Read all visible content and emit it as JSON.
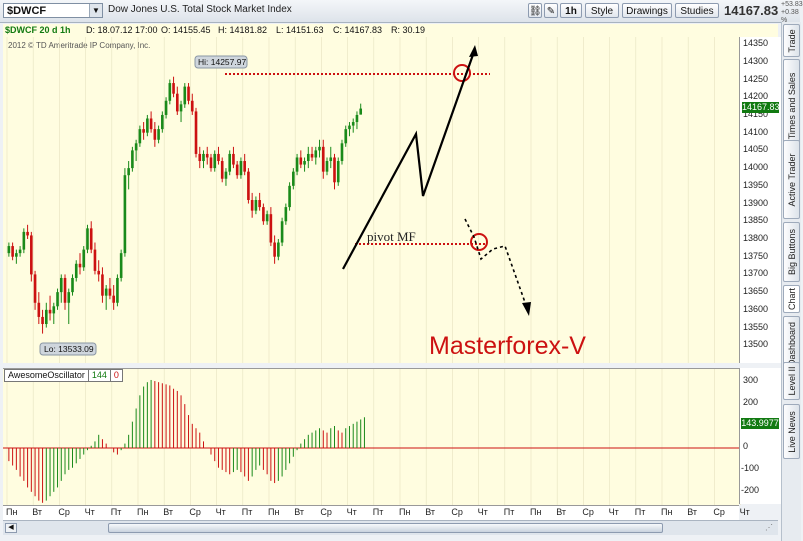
{
  "toolbar": {
    "symbol": "$DWCF",
    "symbol_description": "Dow Jones U.S. Total Stock Market Index",
    "interval": "1h",
    "style_label": "Style",
    "drawings_label": "Drawings",
    "studies_label": "Studies",
    "last_price": "14167.83",
    "change_line1": "+53.83",
    "change_line2": "+0.38 %"
  },
  "infobar": {
    "chart_label": "$DWCF 20 d 1h",
    "date": "D: 18.07.12 17:00",
    "open": "O: 14155.45",
    "high": "H: 14181.82",
    "low": "L: 14151.63",
    "close": "C: 14167.83",
    "range": "R: 30.19"
  },
  "copyright": "2012 © TD Ameritrade IP Company, Inc.",
  "price_tag": "14167.83",
  "osc": {
    "name": "AwesomeOscillator",
    "param1": "144",
    "param2": "0",
    "value_tag": "143.9977"
  },
  "side_tabs": [
    "Trade",
    "Times and Sales",
    "Active Trader",
    "Big Buttons",
    "Chart",
    "Dashboard",
    "Level II",
    "Live News"
  ],
  "annotations": {
    "hi_label": "Hi: 14257.97",
    "lo_label": "Lo: 13533.09",
    "pivot_label": "pivot MF",
    "watermark": "Masterforex-V"
  },
  "colors": {
    "up": "#1a8a1a",
    "down": "#cc1111",
    "pane_bg": "#fffde0",
    "annotation": "#cc1111"
  },
  "chart_data": [
    {
      "type": "candlestick",
      "title": "$DWCF 20 d 1h",
      "ylim": [
        13450,
        14370
      ],
      "y_ticks": [
        13500,
        13550,
        13600,
        13650,
        13700,
        13750,
        13800,
        13850,
        13900,
        13950,
        14000,
        14050,
        14100,
        14150,
        14200,
        14250,
        14300,
        14350
      ],
      "x_ticks": [
        "Пн",
        "Вт",
        "Ср",
        "Чт",
        "Пт",
        "Пн",
        "Вт",
        "Ср",
        "Чт",
        "Пт",
        "Пн",
        "Вт",
        "Ср",
        "Чт",
        "Пт",
        "Пн",
        "Вт",
        "Ср",
        "Чт",
        "Пт",
        "Пн",
        "Вт",
        "Ср",
        "Чт",
        "Пт",
        "Пн",
        "Вт",
        "Ср",
        "Чт"
      ],
      "bars_per_day": 7,
      "data_days": 20,
      "ohlc": [
        [
          13760,
          13790,
          13750,
          13780
        ],
        [
          13780,
          13790,
          13740,
          13750
        ],
        [
          13750,
          13770,
          13730,
          13760
        ],
        [
          13760,
          13780,
          13750,
          13770
        ],
        [
          13770,
          13830,
          13760,
          13820
        ],
        [
          13820,
          13840,
          13800,
          13810
        ],
        [
          13810,
          13820,
          13680,
          13700
        ],
        [
          13700,
          13710,
          13600,
          13620
        ],
        [
          13620,
          13650,
          13560,
          13580
        ],
        [
          13580,
          13600,
          13533,
          13560
        ],
        [
          13560,
          13620,
          13550,
          13600
        ],
        [
          13600,
          13640,
          13570,
          13590
        ],
        [
          13590,
          13620,
          13560,
          13610
        ],
        [
          13610,
          13660,
          13600,
          13650
        ],
        [
          13650,
          13700,
          13620,
          13690
        ],
        [
          13690,
          13700,
          13600,
          13620
        ],
        [
          13620,
          13660,
          13560,
          13650
        ],
        [
          13650,
          13700,
          13640,
          13690
        ],
        [
          13690,
          13740,
          13680,
          13730
        ],
        [
          13730,
          13760,
          13700,
          13720
        ],
        [
          13720,
          13780,
          13710,
          13770
        ],
        [
          13770,
          13840,
          13760,
          13830
        ],
        [
          13830,
          13850,
          13760,
          13770
        ],
        [
          13770,
          13790,
          13700,
          13710
        ],
        [
          13710,
          13740,
          13680,
          13700
        ],
        [
          13700,
          13720,
          13620,
          13640
        ],
        [
          13640,
          13670,
          13600,
          13660
        ],
        [
          13660,
          13690,
          13630,
          13640
        ],
        [
          13640,
          13670,
          13600,
          13620
        ],
        [
          13620,
          13700,
          13610,
          13690
        ],
        [
          13690,
          13770,
          13680,
          13760
        ],
        [
          13760,
          14000,
          13750,
          13980
        ],
        [
          13980,
          14020,
          13940,
          14000
        ],
        [
          14000,
          14060,
          13990,
          14050
        ],
        [
          14050,
          14080,
          14020,
          14070
        ],
        [
          14070,
          14120,
          14060,
          14110
        ],
        [
          14110,
          14130,
          14080,
          14100
        ],
        [
          14100,
          14150,
          14090,
          14140
        ],
        [
          14140,
          14160,
          14100,
          14110
        ],
        [
          14110,
          14130,
          14060,
          14080
        ],
        [
          14080,
          14120,
          14070,
          14110
        ],
        [
          14110,
          14160,
          14100,
          14150
        ],
        [
          14150,
          14200,
          14140,
          14190
        ],
        [
          14190,
          14250,
          14180,
          14240
        ],
        [
          14240,
          14258,
          14200,
          14210
        ],
        [
          14210,
          14230,
          14150,
          14160
        ],
        [
          14160,
          14190,
          14130,
          14180
        ],
        [
          14180,
          14240,
          14170,
          14230
        ],
        [
          14230,
          14240,
          14180,
          14190
        ],
        [
          14190,
          14210,
          14150,
          14160
        ],
        [
          14160,
          14170,
          14030,
          14040
        ],
        [
          14040,
          14060,
          14000,
          14020
        ],
        [
          14020,
          14050,
          14000,
          14040
        ],
        [
          14040,
          14060,
          14010,
          14030
        ],
        [
          14030,
          14040,
          13990,
          14000
        ],
        [
          14000,
          14050,
          13990,
          14040
        ],
        [
          14040,
          14060,
          14010,
          14020
        ],
        [
          14020,
          14030,
          13960,
          13970
        ],
        [
          13970,
          14000,
          13950,
          13990
        ],
        [
          13990,
          14050,
          13980,
          14040
        ],
        [
          14040,
          14060,
          14000,
          14010
        ],
        [
          14010,
          14020,
          13970,
          13980
        ],
        [
          13980,
          14030,
          13970,
          14020
        ],
        [
          14020,
          14040,
          13980,
          13990
        ],
        [
          13990,
          14000,
          13900,
          13910
        ],
        [
          13910,
          13930,
          13860,
          13880
        ],
        [
          13880,
          13920,
          13870,
          13910
        ],
        [
          13910,
          13930,
          13880,
          13890
        ],
        [
          13890,
          13900,
          13840,
          13850
        ],
        [
          13850,
          13880,
          13840,
          13870
        ],
        [
          13870,
          13890,
          13780,
          13790
        ],
        [
          13790,
          13810,
          13730,
          13750
        ],
        [
          13750,
          13800,
          13740,
          13790
        ],
        [
          13790,
          13860,
          13780,
          13850
        ],
        [
          13850,
          13900,
          13840,
          13890
        ],
        [
          13890,
          13960,
          13880,
          13950
        ],
        [
          13950,
          14000,
          13940,
          13990
        ],
        [
          13990,
          14040,
          13980,
          14030
        ],
        [
          14030,
          14050,
          14000,
          14010
        ],
        [
          14010,
          14030,
          13990,
          14020
        ],
        [
          14020,
          14060,
          14000,
          14040
        ],
        [
          14040,
          14060,
          14020,
          14030
        ],
        [
          14030,
          14060,
          14010,
          14050
        ],
        [
          14050,
          14080,
          14030,
          14060
        ],
        [
          14060,
          14080,
          13970,
          13990
        ],
        [
          13990,
          14030,
          13980,
          14020
        ],
        [
          14020,
          14060,
          14000,
          14030
        ],
        [
          14030,
          14040,
          13940,
          13960
        ],
        [
          13960,
          14030,
          13950,
          14020
        ],
        [
          14020,
          14080,
          14010,
          14070
        ],
        [
          14070,
          14120,
          14060,
          14110
        ],
        [
          14110,
          14130,
          14090,
          14120
        ],
        [
          14120,
          14140,
          14100,
          14130
        ],
        [
          14130,
          14160,
          14110,
          14150
        ],
        [
          14151,
          14182,
          14151,
          14168
        ]
      ]
    },
    {
      "type": "bar",
      "title": "AwesomeOscillator",
      "ylim": [
        -260,
        360
      ],
      "y_ticks": [
        -200,
        -100,
        0,
        100,
        200,
        300
      ],
      "values": [
        -60,
        -80,
        -100,
        -130,
        -150,
        -180,
        -200,
        -220,
        -240,
        -250,
        -240,
        -220,
        -200,
        -180,
        -150,
        -120,
        -100,
        -90,
        -70,
        -50,
        -30,
        -10,
        10,
        30,
        60,
        40,
        20,
        0,
        -20,
        -30,
        -10,
        20,
        60,
        120,
        180,
        240,
        280,
        300,
        310,
        305,
        300,
        295,
        290,
        285,
        270,
        260,
        240,
        200,
        150,
        110,
        90,
        70,
        30,
        0,
        -30,
        -60,
        -90,
        -100,
        -110,
        -120,
        -110,
        -100,
        -110,
        -130,
        -150,
        -130,
        -100,
        -80,
        -100,
        -120,
        -150,
        -160,
        -150,
        -130,
        -100,
        -70,
        -40,
        -10,
        20,
        40,
        60,
        70,
        80,
        90,
        80,
        70,
        90,
        100,
        80,
        70,
        90,
        100,
        110,
        120,
        130,
        140
      ]
    }
  ]
}
